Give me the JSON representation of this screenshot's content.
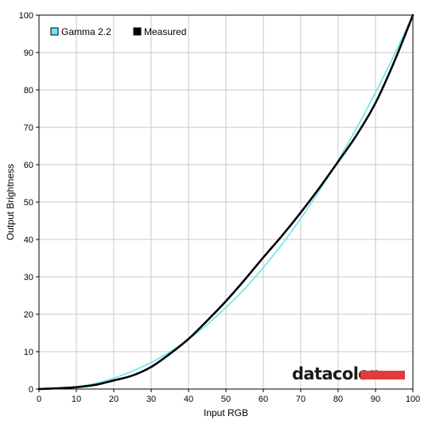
{
  "chart_data": {
    "type": "line",
    "title": "",
    "xlabel": "Input RGB",
    "ylabel": "Output Brightness",
    "xlim": [
      0,
      100
    ],
    "ylim": [
      0,
      100
    ],
    "xticks": [
      0,
      10,
      20,
      30,
      40,
      50,
      60,
      70,
      80,
      90,
      100
    ],
    "yticks": [
      0,
      10,
      20,
      30,
      40,
      50,
      60,
      70,
      80,
      90,
      100
    ],
    "grid": true,
    "legend_position": "top-left",
    "series": [
      {
        "name": "Gamma 2.2",
        "color": "#66e6ee",
        "x": [
          0,
          5,
          10,
          15,
          20,
          25,
          30,
          35,
          40,
          45,
          50,
          55,
          60,
          65,
          70,
          75,
          80,
          85,
          90,
          95,
          100
        ],
        "y": [
          0,
          0.1,
          0.6,
          1.5,
          2.9,
          4.8,
          7.1,
          9.9,
          13.3,
          17.3,
          21.8,
          26.8,
          32.5,
          38.7,
          45.6,
          53.1,
          61.2,
          69.9,
          79.3,
          89.3,
          100
        ]
      },
      {
        "name": "Measured",
        "color": "#000000",
        "x": [
          0,
          5,
          10,
          15,
          20,
          25,
          30,
          35,
          40,
          45,
          50,
          55,
          60,
          65,
          70,
          75,
          80,
          85,
          90,
          95,
          100
        ],
        "y": [
          0,
          0.2,
          0.5,
          1.1,
          2.3,
          3.6,
          5.9,
          9.4,
          13.4,
          18.3,
          23.5,
          29.2,
          35.2,
          41.0,
          47.2,
          53.8,
          60.8,
          68.0,
          76.5,
          87.5,
          100
        ]
      }
    ]
  },
  "logo": {
    "text": "datacolor",
    "bar_color": "#e23b3b"
  }
}
